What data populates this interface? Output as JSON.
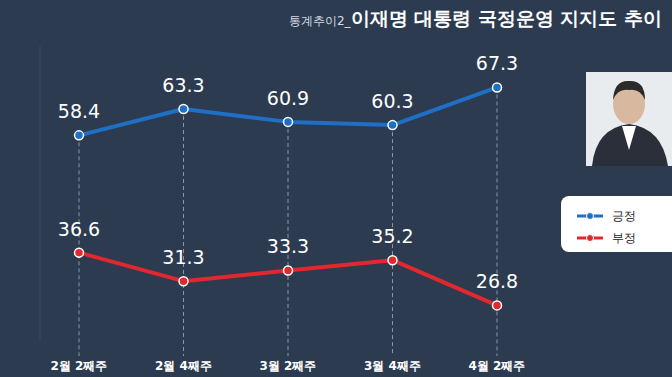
{
  "chart_data": {
    "type": "line",
    "subtitle": "통계추이2_",
    "title": "이재명 대통령 국정운영 지지도 추이",
    "categories": [
      "2월 2째주",
      "2월 4째주",
      "3월 2째주",
      "3월 4째주",
      "4월 2째주"
    ],
    "series": [
      {
        "name": "긍정",
        "color": "#1f6fc5",
        "values": [
          58.4,
          63.3,
          60.9,
          60.3,
          67.3
        ],
        "marker": "circle"
      },
      {
        "name": "부정",
        "color": "#e0282e",
        "values": [
          36.6,
          31.3,
          33.3,
          35.2,
          26.8
        ],
        "marker": "circle"
      }
    ],
    "ylim": [
      20,
      75
    ],
    "tick_labels": "x",
    "grid": true,
    "data_labels": true,
    "legend": "right"
  }
}
